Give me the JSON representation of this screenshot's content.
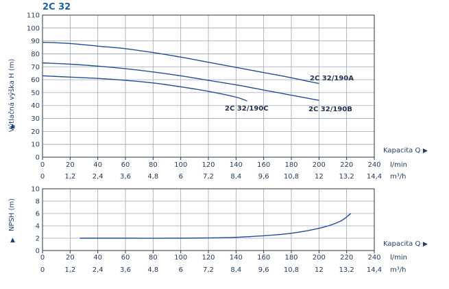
{
  "title": "2C 32",
  "chart_data": [
    {
      "type": "line",
      "ylabel": "Výtlačná výška H (m)",
      "xlabel": "Kapacita Q",
      "ylim": [
        0,
        110
      ],
      "xlim": [
        0,
        240
      ],
      "x_ticks_lmin": [
        "0",
        "20",
        "40",
        "60",
        "80",
        "100",
        "120",
        "140",
        "160",
        "180",
        "200",
        "220",
        "240"
      ],
      "x_ticks_m3h": [
        "0",
        "1,2",
        "2,4",
        "3,6",
        "4,8",
        "6",
        "7,2",
        "8,4",
        "9,6",
        "10,8",
        "12",
        "13,2",
        "14,4"
      ],
      "y_ticks": [
        "0",
        "10",
        "20",
        "30",
        "40",
        "50",
        "60",
        "70",
        "80",
        "90",
        "100",
        "110"
      ],
      "unit_lmin": "l/min",
      "unit_m3h": "m³/h",
      "grid": true,
      "series": [
        {
          "name": "2C 32/190A",
          "x": [
            0,
            20,
            40,
            60,
            80,
            100,
            120,
            140,
            160,
            180,
            200
          ],
          "y": [
            89,
            88,
            86,
            84,
            81,
            77.5,
            73.5,
            69.5,
            65.5,
            61.5,
            57
          ]
        },
        {
          "name": "2C 32/190B",
          "x": [
            0,
            20,
            40,
            60,
            80,
            100,
            120,
            140,
            160,
            180,
            200
          ],
          "y": [
            73,
            72,
            70.5,
            68.5,
            66,
            63,
            59.5,
            56,
            52,
            48,
            44
          ]
        },
        {
          "name": "2C 32/190C",
          "x": [
            0,
            20,
            40,
            60,
            80,
            100,
            120,
            140,
            148
          ],
          "y": [
            63,
            62,
            61,
            59.5,
            57.5,
            54.5,
            51,
            46.5,
            43.5
          ]
        }
      ]
    },
    {
      "type": "line",
      "ylabel": "NPSH (m)",
      "xlabel": "Kapacita Q",
      "ylim": [
        0,
        10
      ],
      "xlim": [
        0,
        240
      ],
      "x_ticks_lmin": [
        "0",
        "20",
        "40",
        "60",
        "80",
        "100",
        "120",
        "140",
        "160",
        "180",
        "200",
        "220",
        "240"
      ],
      "x_ticks_m3h": [
        "0",
        "1,2",
        "2,4",
        "3,6",
        "4,8",
        "6",
        "7,2",
        "8,4",
        "9,6",
        "10,8",
        "12",
        "13,2",
        "14,4"
      ],
      "y_ticks": [
        "0",
        "2",
        "4",
        "6",
        "8",
        "10"
      ],
      "unit_lmin": "l/min",
      "unit_m3h": "m³/h",
      "grid": true,
      "series": [
        {
          "name": "",
          "x": [
            27,
            60,
            100,
            120,
            140,
            160,
            180,
            200,
            215,
            223
          ],
          "y": [
            2,
            2,
            2,
            2.05,
            2.15,
            2.4,
            2.8,
            3.6,
            4.7,
            6
          ]
        }
      ]
    }
  ],
  "colors": {
    "curve": "#1e4f99",
    "title": "#1f5ea8",
    "text": "#1f2f4e"
  }
}
